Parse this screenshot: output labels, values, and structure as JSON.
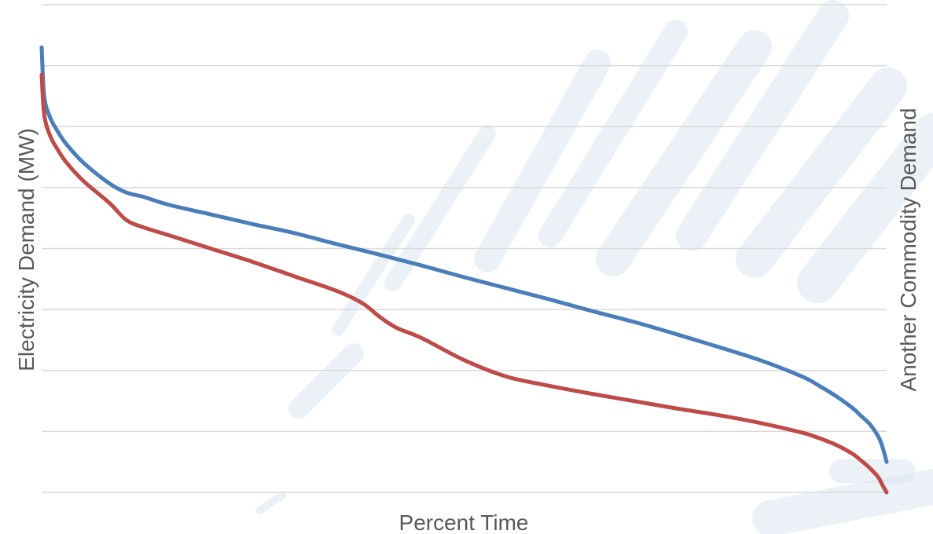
{
  "chart_data": {
    "type": "line",
    "title": "",
    "xlabel": "Percent Time",
    "ylabel": "Electricity Demand (MW)",
    "y2label": "Another Commodity Demand",
    "xlim": [
      0,
      100
    ],
    "ylim": [
      0,
      8
    ],
    "y2lim": [
      0,
      8
    ],
    "grid": true,
    "gridlines": [
      0,
      1,
      2,
      3,
      4,
      5,
      6,
      7,
      8
    ],
    "tick_labels_shown": false,
    "legend": "none",
    "colors": {
      "series1": "#4a7ebb",
      "series2": "#be4b48",
      "grid": "#d9d9d9",
      "axis_title": "#595959",
      "watermark": "#dbe6f1"
    },
    "series": [
      {
        "axis": "left",
        "x": [
          0,
          0.3,
          1,
          2,
          3,
          5,
          8,
          10,
          12,
          15,
          20,
          25,
          30,
          35,
          40,
          45,
          50,
          55,
          60,
          65,
          70,
          75,
          80,
          85,
          90,
          92,
          94,
          96,
          97,
          98,
          99,
          99.5,
          100
        ],
        "values": [
          7.3,
          6.5,
          6.15,
          5.9,
          5.7,
          5.4,
          5.07,
          4.92,
          4.85,
          4.72,
          4.56,
          4.4,
          4.25,
          4.07,
          3.9,
          3.72,
          3.53,
          3.35,
          3.17,
          2.98,
          2.8,
          2.6,
          2.39,
          2.17,
          1.9,
          1.75,
          1.58,
          1.38,
          1.25,
          1.12,
          0.92,
          0.75,
          0.5
        ]
      },
      {
        "axis": "right",
        "x": [
          0,
          0.3,
          1,
          2,
          3,
          5,
          8,
          10,
          12,
          15,
          20,
          25,
          30,
          35,
          38,
          40,
          42,
          45,
          50,
          55,
          60,
          65,
          70,
          75,
          80,
          85,
          90,
          92,
          94,
          96,
          97,
          98,
          99,
          99.5,
          100
        ],
        "values": [
          6.85,
          6.2,
          5.85,
          5.6,
          5.4,
          5.1,
          4.75,
          4.47,
          4.35,
          4.22,
          4.0,
          3.78,
          3.54,
          3.3,
          3.1,
          2.88,
          2.7,
          2.53,
          2.17,
          1.9,
          1.75,
          1.62,
          1.5,
          1.38,
          1.27,
          1.14,
          0.98,
          0.89,
          0.78,
          0.63,
          0.52,
          0.4,
          0.25,
          0.12,
          0.0
        ]
      }
    ]
  }
}
